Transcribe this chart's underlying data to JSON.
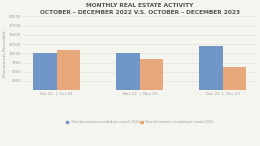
{
  "title_line1": "MONTHLY REAL ESTATE ACTIVITY",
  "title_line2": "OCTOBER – DECEMBER 2022 V.S. OCTOBER – DECEMBER 2023",
  "groups": [
    "Oct 22  |  Oct 23",
    "Nov 22  |  Nov 23",
    "Dec 22  |  Dec 23"
  ],
  "values_2022": [
    10200,
    10000,
    12000
  ],
  "values_2023": [
    11000,
    8500,
    6200
  ],
  "color_2022": "#7096c8",
  "color_2023": "#e8a87c",
  "ylabel": "Documents Recorded",
  "legend_2022": "Total documents recorded per month 2022",
  "legend_2023": "Total documents recorded per month 2023",
  "ylim": [
    0,
    20000
  ],
  "yticks": [
    0,
    2500,
    5000,
    7500,
    10000,
    12500,
    15000,
    17500,
    20000
  ],
  "ytick_labels": [
    "",
    "2500",
    "5000",
    "7500",
    "10000",
    "12500",
    "15000",
    "17500",
    "20000"
  ],
  "background_color": "#f5f5f0",
  "title_fontsize": 4.2,
  "axis_fontsize": 3.2,
  "tick_fontsize": 2.8,
  "legend_fontsize": 2.3
}
